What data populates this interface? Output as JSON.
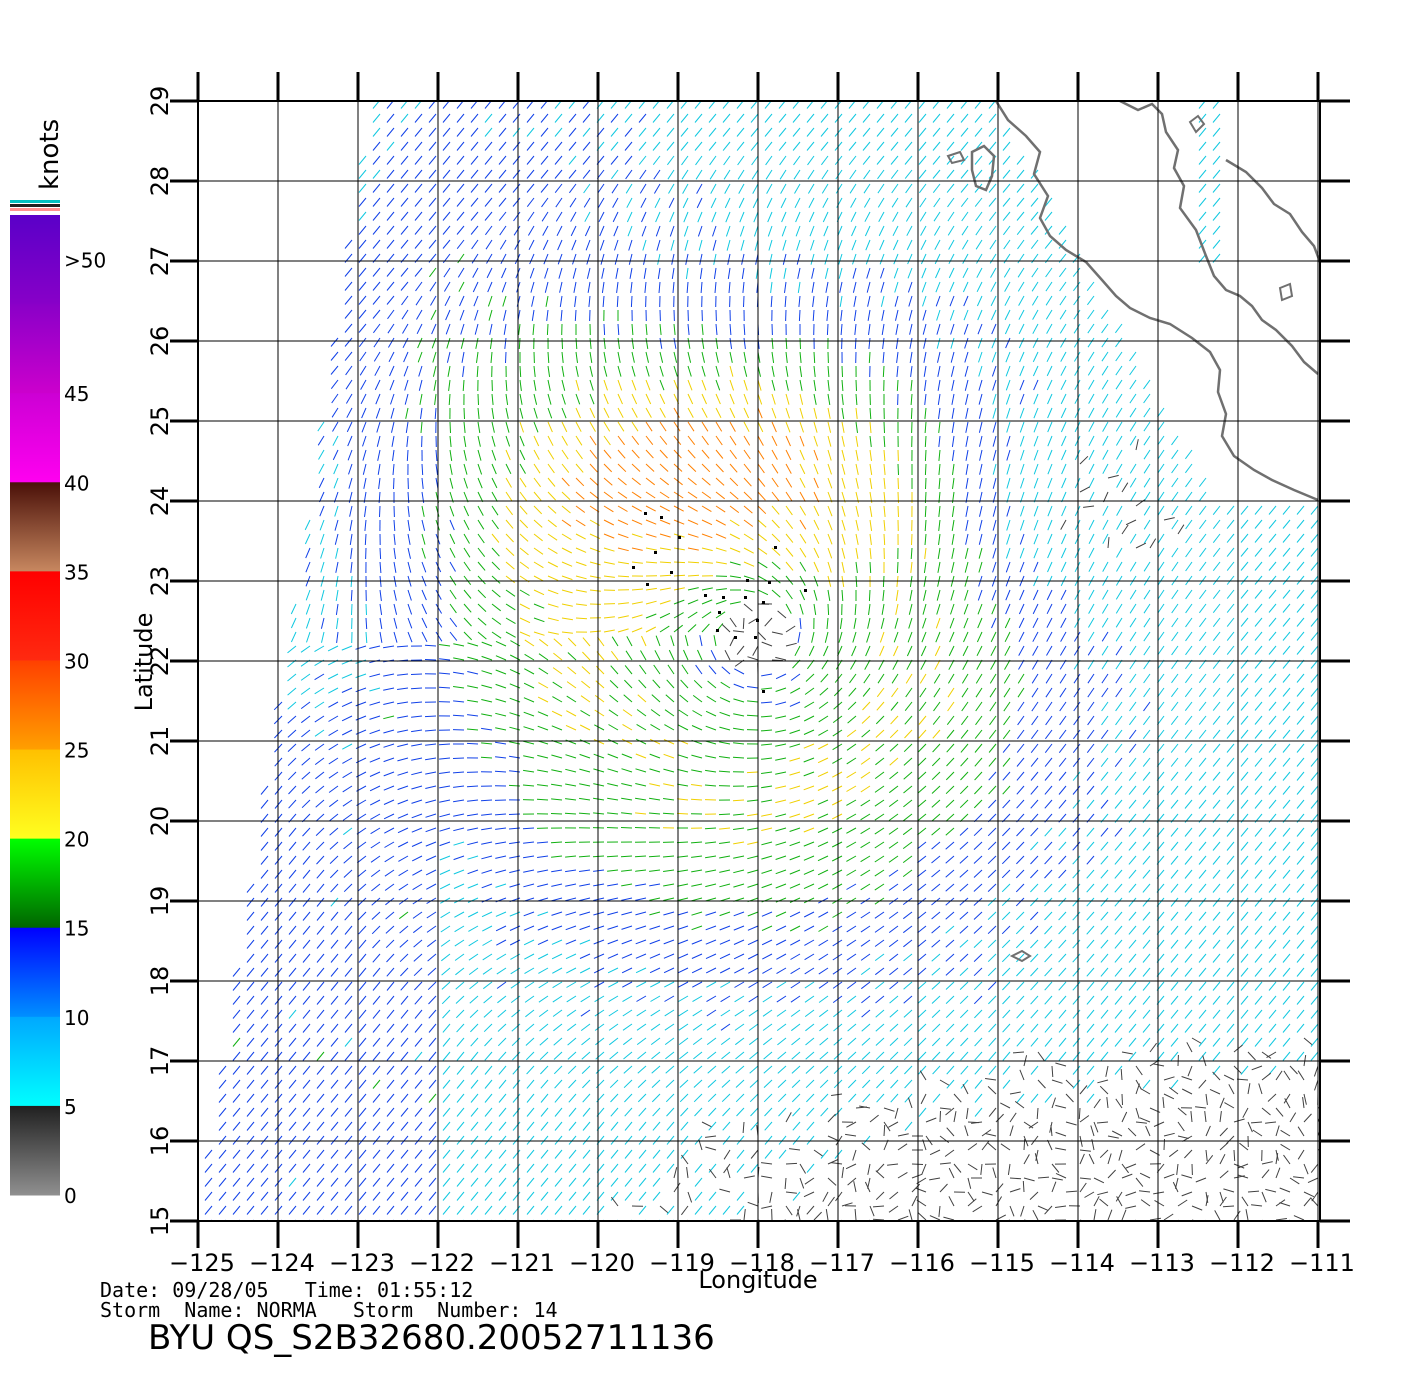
{
  "legend": {
    "unit": "knots",
    "ticks": [
      ">50",
      "45",
      "40",
      "35",
      "30",
      "25",
      "20",
      "15",
      "10",
      "5",
      "0"
    ],
    "bands": [
      {
        "from": 50,
        "to": 55,
        "top": "#5a00c8",
        "bottom": "#8800c8"
      },
      {
        "from": 45,
        "to": 50,
        "top": "#8a00c8",
        "bottom": "#cc00cc"
      },
      {
        "from": 40,
        "to": 45,
        "top": "#cc00d4",
        "bottom": "#ff00f0"
      },
      {
        "from": 35,
        "to": 40,
        "top": "#4a1008",
        "bottom": "#c88860"
      },
      {
        "from": 30,
        "to": 35,
        "top": "#ff0000",
        "bottom": "#ff2a10"
      },
      {
        "from": 25,
        "to": 30,
        "top": "#ff4000",
        "bottom": "#ffa000"
      },
      {
        "from": 20,
        "to": 25,
        "top": "#ffc000",
        "bottom": "#ffff20"
      },
      {
        "from": 15,
        "to": 20,
        "top": "#00ff00",
        "bottom": "#006400"
      },
      {
        "from": 10,
        "to": 15,
        "top": "#0000ff",
        "bottom": "#0090ff"
      },
      {
        "from": 5,
        "to": 10,
        "top": "#00a8ff",
        "bottom": "#00ffff"
      },
      {
        "from": 0,
        "to": 5,
        "top": "#202020",
        "bottom": "#909090"
      }
    ],
    "cap_colors": [
      "#00c0c0",
      "#202020",
      "#ff9090"
    ]
  },
  "axes": {
    "xlabel": "Longitude",
    "ylabel": "Latitude",
    "xticks": [
      "-125",
      "-124",
      "-123",
      "-122",
      "-121",
      "-120",
      "-119",
      "-118",
      "-117",
      "-116",
      "-115",
      "-114",
      "-113",
      "-112",
      "-111"
    ],
    "yticks": [
      "15",
      "16",
      "17",
      "18",
      "19",
      "20",
      "21",
      "22",
      "23",
      "24",
      "25",
      "26",
      "27",
      "28",
      "29"
    ],
    "xlim": [
      -125,
      -110.5
    ],
    "ylim": [
      15,
      29
    ]
  },
  "storm": {
    "center_lon": -118.0,
    "center_lat": 22.3
  },
  "footer": {
    "line1": "Date: 09/28/05   Time: 01:55:12",
    "line2": "Storm  Name: NORMA   Storm  Number: 14",
    "id": "BYU  QS_S2B32680.20052711136"
  }
}
